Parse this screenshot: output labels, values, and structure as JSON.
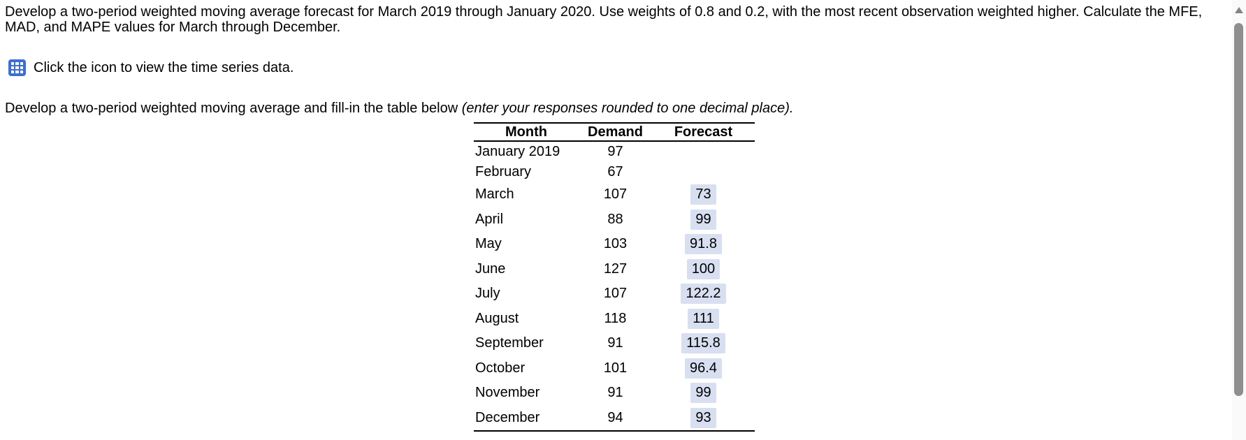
{
  "instructions": {
    "paragraph1": "Develop a two-period weighted moving average forecast for March 2019 through January 2020. Use weights of 0.8 and 0.2, with the most recent observation weighted higher. Calculate the MFE, MAD, and MAPE values for March through December.",
    "icon_line": "Click the icon to view the time series data.",
    "paragraph2_normal": "Develop a two-period weighted moving average and fill-in the table below ",
    "paragraph2_italic": "(enter your responses rounded to one decimal place)."
  },
  "icons": {
    "table_grid_icon": "table-grid-icon",
    "scroll_up_icon": "scroll-up-arrow-icon"
  },
  "table": {
    "headers": [
      "Month",
      "Demand",
      "Forecast"
    ],
    "rows": [
      {
        "month": "January 2019",
        "demand": "97",
        "forecast": null
      },
      {
        "month": "February",
        "demand": "67",
        "forecast": null
      },
      {
        "month": "March",
        "demand": "107",
        "forecast": "73"
      },
      {
        "month": "April",
        "demand": "88",
        "forecast": "99"
      },
      {
        "month": "May",
        "demand": "103",
        "forecast": "91.8"
      },
      {
        "month": "June",
        "demand": "127",
        "forecast": "100"
      },
      {
        "month": "July",
        "demand": "107",
        "forecast": "122.2"
      },
      {
        "month": "August",
        "demand": "118",
        "forecast": "111"
      },
      {
        "month": "September",
        "demand": "91",
        "forecast": "115.8"
      },
      {
        "month": "October",
        "demand": "101",
        "forecast": "96.4"
      },
      {
        "month": "November",
        "demand": "91",
        "forecast": "99"
      },
      {
        "month": "December",
        "demand": "94",
        "forecast": "93"
      }
    ]
  },
  "colors": {
    "answer_highlight": "#d7dff0",
    "icon_blue": "#3b6fd4",
    "scrollbar_thumb": "#8f8f8f",
    "text": "#000000"
  }
}
